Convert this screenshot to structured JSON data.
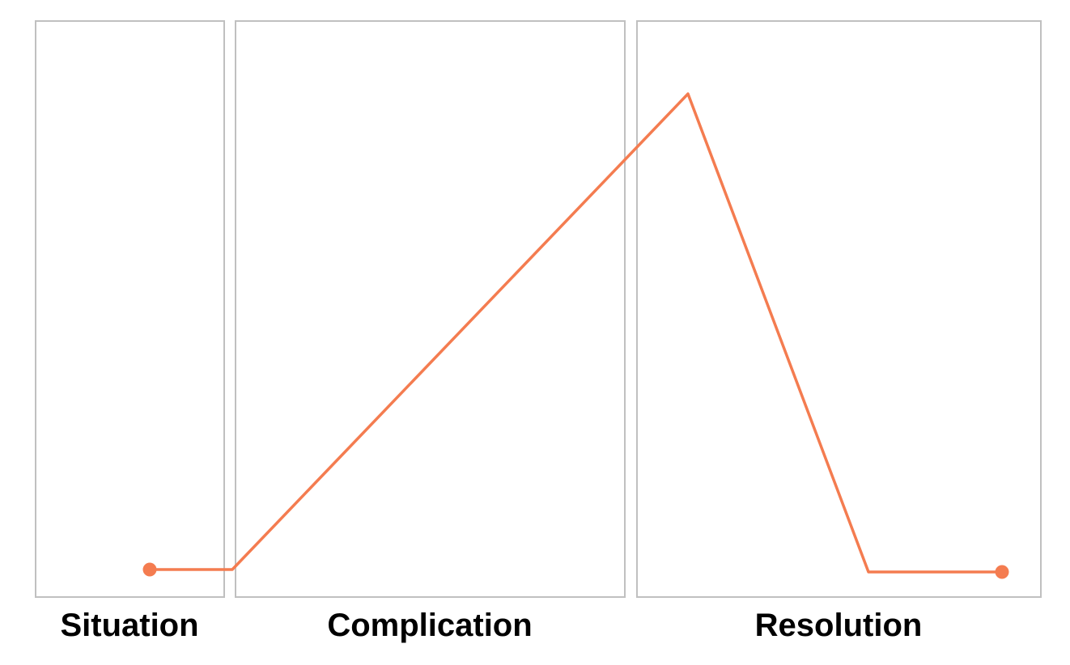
{
  "sections": [
    {
      "label": "Situation"
    },
    {
      "label": "Complication"
    },
    {
      "label": "Resolution"
    }
  ]
}
